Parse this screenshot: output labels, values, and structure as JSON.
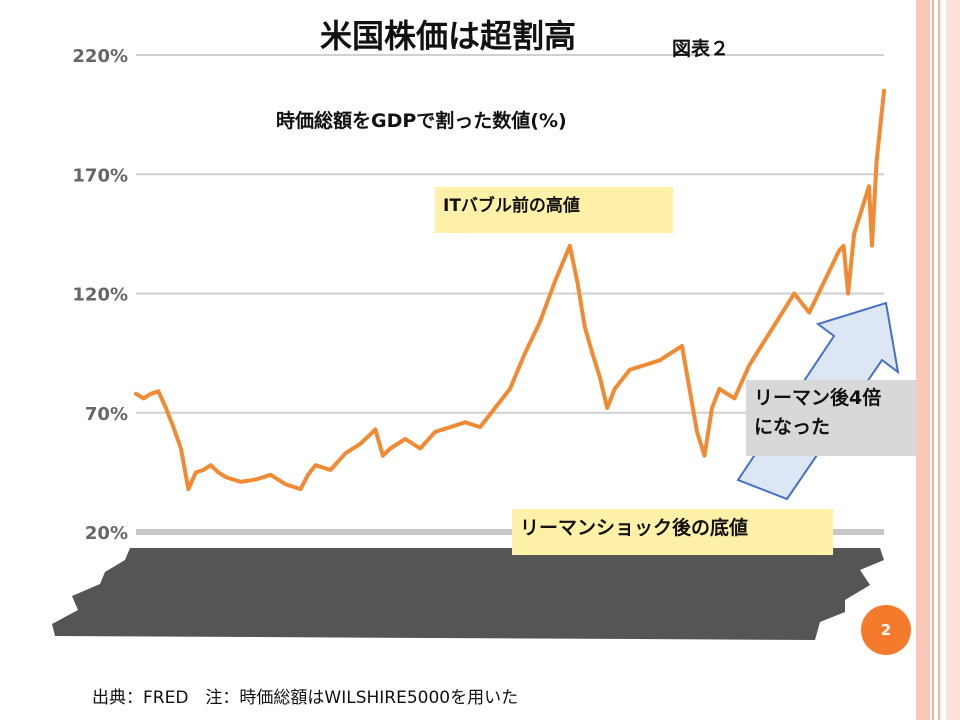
{
  "slide": {
    "title": "米国株価は超割高",
    "figure_label": "図表２",
    "subtitle": "時価総額をGDPで割った数値(%)",
    "page_number": "2",
    "source_note": "出典：FRED　注：時価総額はWILSHIRE5000を用いた"
  },
  "annotations": {
    "it_bubble": "ITバブル前の高値",
    "lehman_bottom": "リーマンショック後の底値",
    "four_times_line1": "リーマン後4倍",
    "four_times_line2": "になった"
  },
  "colors": {
    "line": "#f28a33",
    "grid": "#d0d0d0",
    "label_bg": "#fff2a8",
    "callout_bg": "#d8d8d8",
    "arrow_fill": "#dde6f4",
    "arrow_stroke": "#4472c4",
    "accent": "#f47a2c"
  },
  "chart_data": {
    "type": "line",
    "title": "",
    "xlabel": "",
    "ylabel": "",
    "ylim": [
      20,
      220
    ],
    "yticks": [
      "20%",
      "70%",
      "120%",
      "170%",
      "220%"
    ],
    "ytick_values": [
      20,
      70,
      120,
      170,
      220
    ],
    "x_domain": [
      1971,
      2021
    ],
    "grid": "horizontal",
    "series": [
      {
        "x": [
          1971.0,
          1971.5,
          1972.0,
          1972.5,
          1973.0,
          1973.5,
          1974.0,
          1974.5,
          1975.0,
          1975.5,
          1976.0,
          1976.5,
          1977.0,
          1978.0,
          1979.0,
          1980.0,
          1981.0,
          1982.0,
          1982.5,
          1983.0,
          1984.0,
          1985.0,
          1986.0,
          1987.0,
          1987.5,
          1988.0,
          1989.0,
          1990.0,
          1991.0,
          1992.0,
          1993.0,
          1994.0,
          1995.0,
          1996.0,
          1997.0,
          1998.0,
          1999.0,
          2000.0,
          2000.5,
          2001.0,
          2001.5,
          2002.0,
          2002.5,
          2003.0,
          2004.0,
          2005.0,
          2006.0,
          2007.0,
          2007.5,
          2008.0,
          2008.5,
          2009.0,
          2009.5,
          2010.0,
          2011.0,
          2012.0,
          2013.0,
          2014.0,
          2015.0,
          2016.0,
          2017.0,
          2018.0,
          2018.3,
          2018.6,
          2019.0,
          2019.5,
          2020.0,
          2020.2,
          2020.5,
          2021.0
        ],
        "y": [
          78,
          76,
          78,
          79,
          72,
          64,
          55,
          38,
          45,
          46,
          48,
          45,
          43,
          41,
          42,
          44,
          40,
          38,
          44,
          48,
          46,
          53,
          57,
          63,
          52,
          55,
          59,
          55,
          62,
          64,
          66,
          64,
          72,
          80,
          95,
          108,
          125,
          140,
          125,
          106,
          95,
          85,
          72,
          80,
          88,
          90,
          92,
          96,
          98,
          80,
          62,
          52,
          72,
          80,
          76,
          90,
          100,
          110,
          120,
          112,
          125,
          138,
          140,
          120,
          145,
          155,
          165,
          140,
          175,
          205
        ]
      }
    ]
  }
}
